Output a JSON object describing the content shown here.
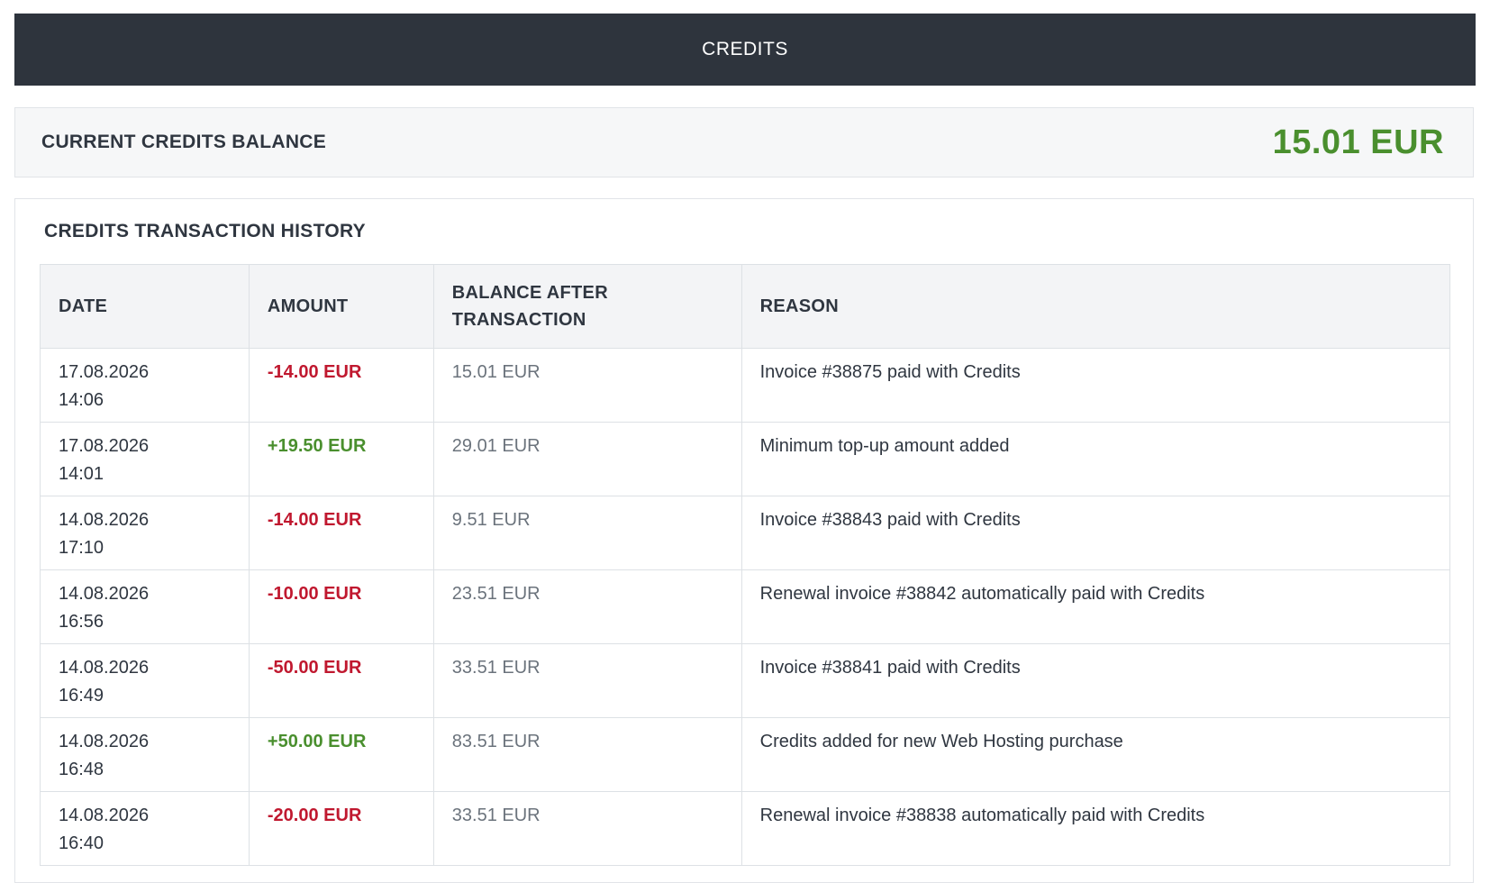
{
  "header": {
    "title": "CREDITS"
  },
  "balance": {
    "label": "CURRENT CREDITS BALANCE",
    "value": "15.01 EUR"
  },
  "history": {
    "title": "CREDITS TRANSACTION HISTORY",
    "columns": {
      "date": "DATE",
      "amount": "AMOUNT",
      "balance_line1": "BALANCE AFTER",
      "balance_line2": "TRANSACTION",
      "reason": "REASON"
    },
    "rows": [
      {
        "date": "17.08.2026",
        "time": "14:06",
        "amount": "-14.00 EUR",
        "balance_after": "15.01 EUR",
        "reason": "Invoice #38875 paid with Credits"
      },
      {
        "date": "17.08.2026",
        "time": "14:01",
        "amount": "+19.50 EUR",
        "balance_after": "29.01 EUR",
        "reason": "Minimum top-up amount added"
      },
      {
        "date": "14.08.2026",
        "time": "17:10",
        "amount": "-14.00 EUR",
        "balance_after": "9.51 EUR",
        "reason": "Invoice #38843 paid with Credits"
      },
      {
        "date": "14.08.2026",
        "time": "16:56",
        "amount": "-10.00 EUR",
        "balance_after": "23.51 EUR",
        "reason": "Renewal invoice #38842 automatically paid with Credits"
      },
      {
        "date": "14.08.2026",
        "time": "16:49",
        "amount": "-50.00 EUR",
        "balance_after": "33.51 EUR",
        "reason": "Invoice #38841 paid with Credits"
      },
      {
        "date": "14.08.2026",
        "time": "16:48",
        "amount": "+50.00 EUR",
        "balance_after": "83.51 EUR",
        "reason": "Credits added for new Web Hosting purchase"
      },
      {
        "date": "14.08.2026",
        "time": "16:40",
        "amount": "-20.00 EUR",
        "balance_after": "33.51 EUR",
        "reason": "Renewal invoice #38838 automatically paid with Credits"
      }
    ]
  },
  "colors": {
    "header_bg": "#2e343d",
    "positive": "#4a8f2e",
    "negative": "#c0182f"
  }
}
